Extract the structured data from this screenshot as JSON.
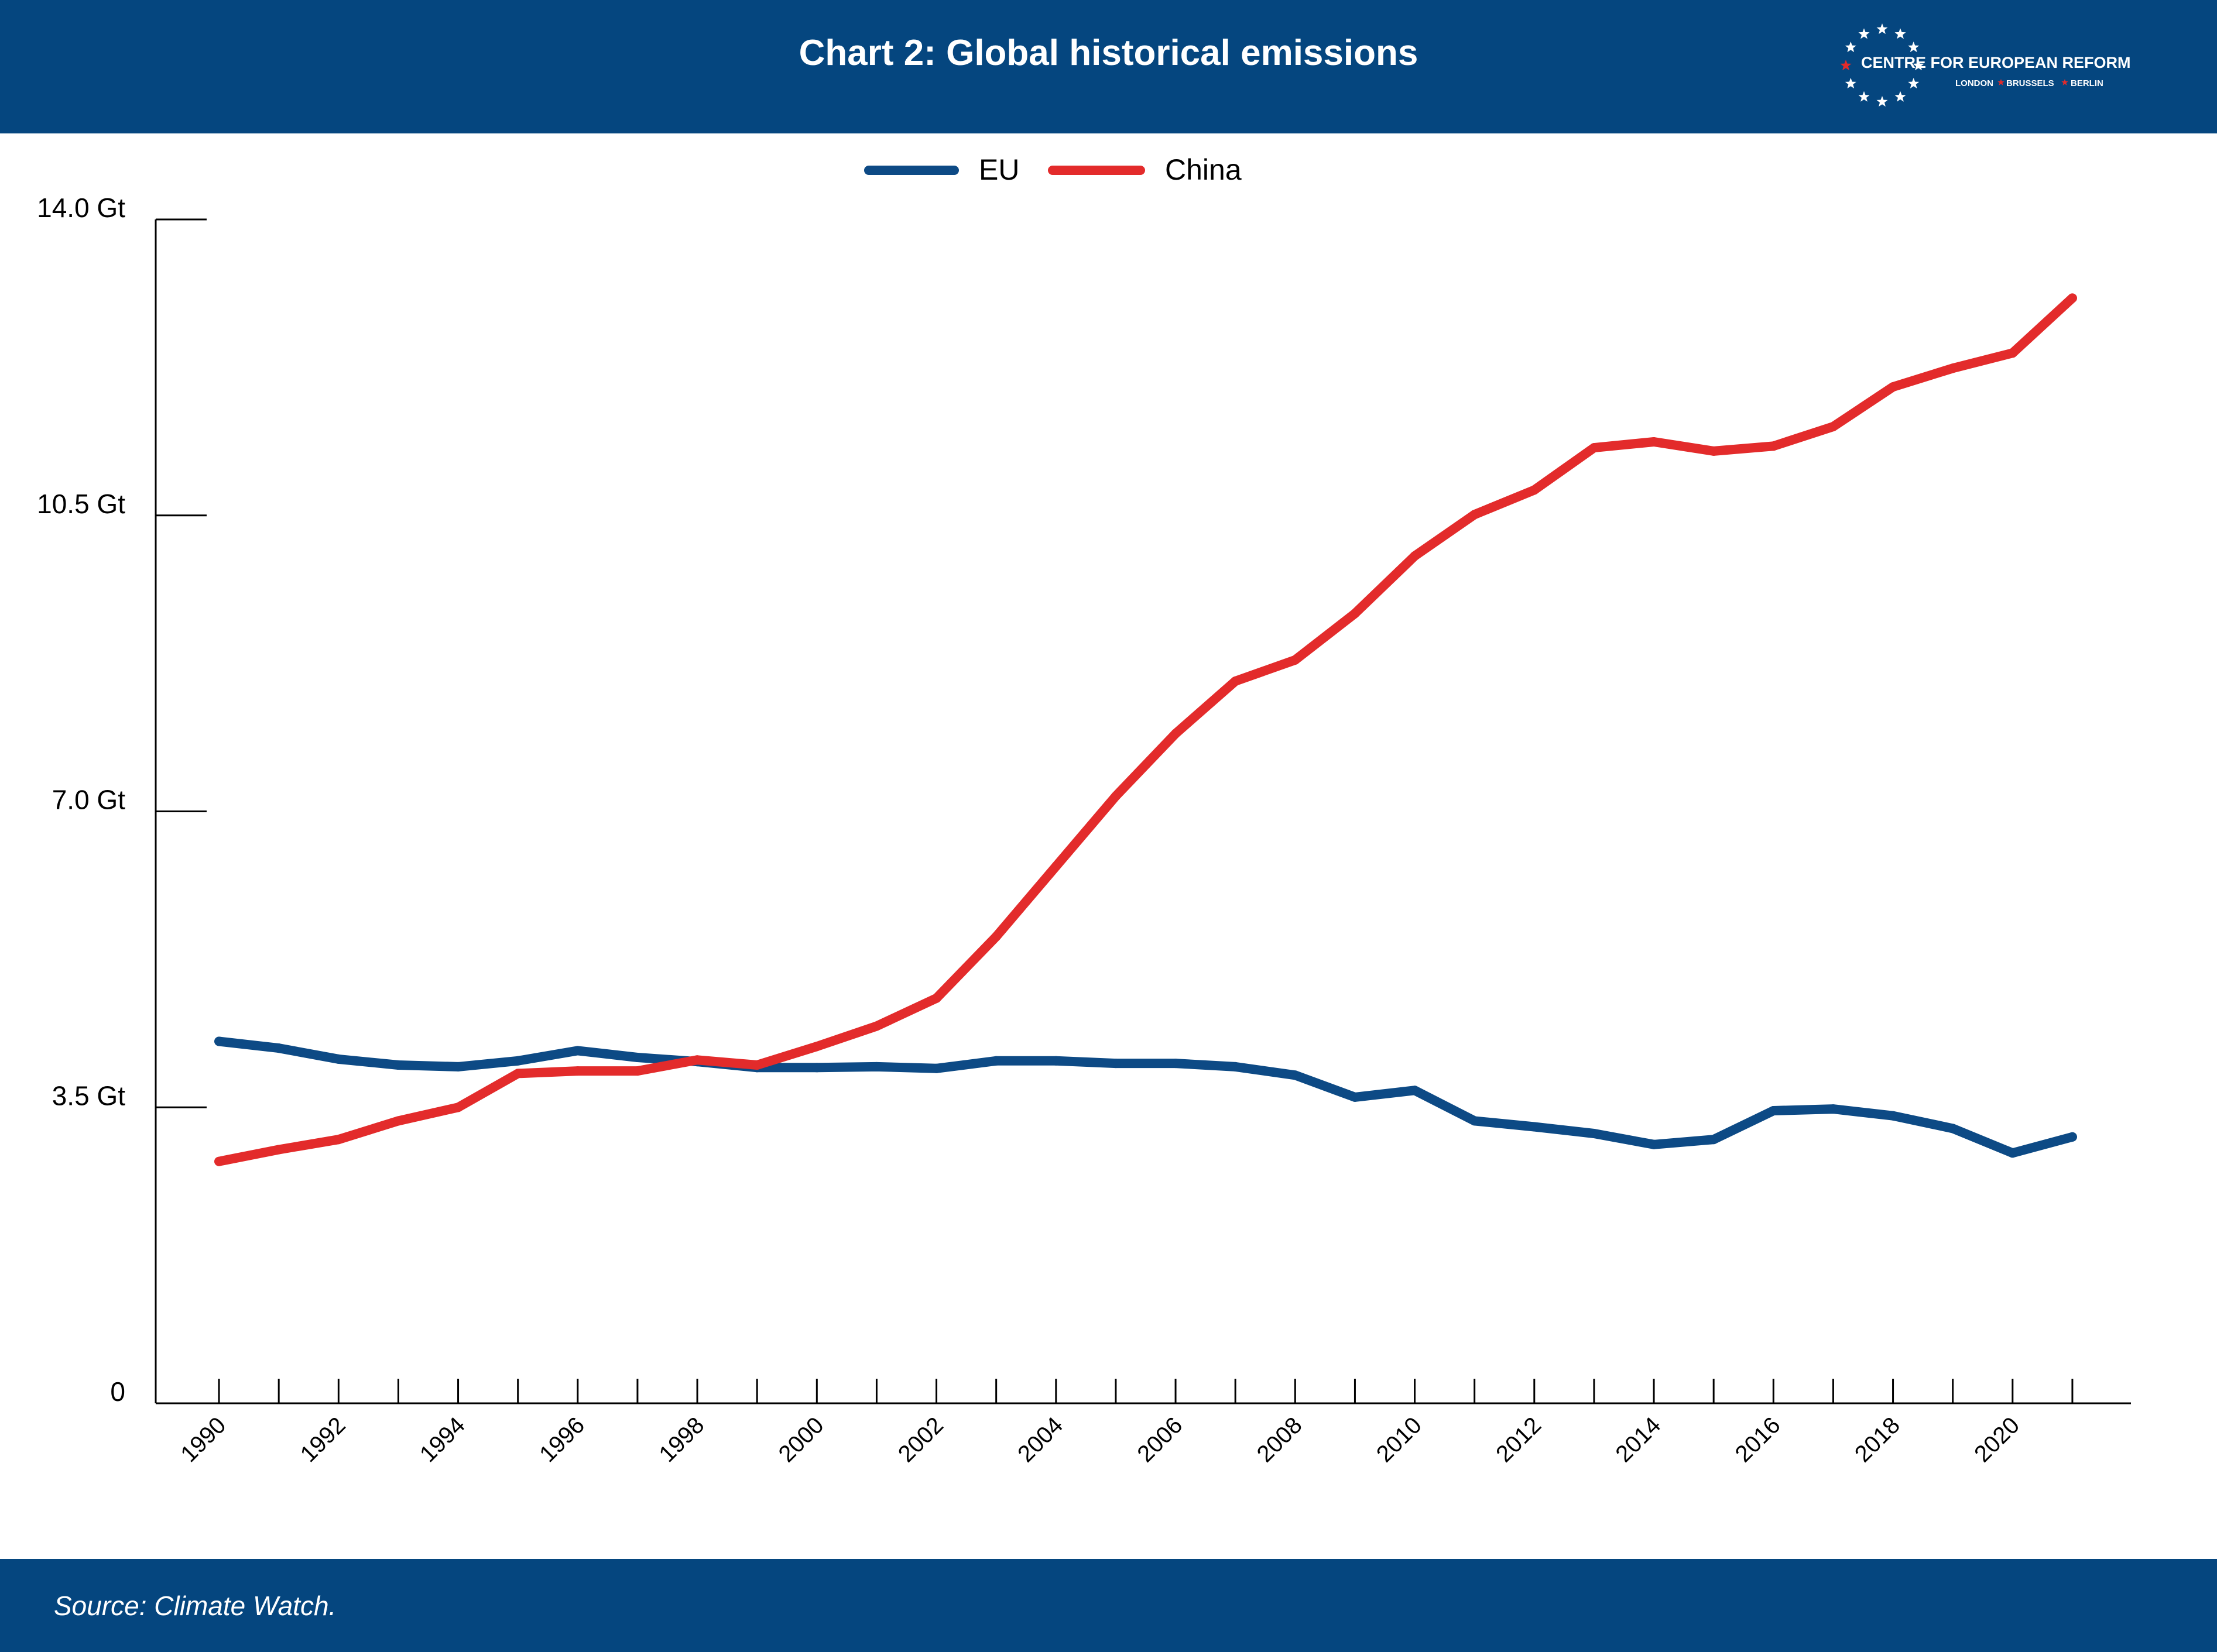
{
  "header": {
    "title": "Chart 2: Global historical emissions",
    "logo": {
      "name": "CENTRE FOR EUROPEAN REFORM",
      "cities": [
        "LONDON",
        "BRUSSELS",
        "BERLIN"
      ]
    }
  },
  "footer": {
    "source": "Source: Climate Watch."
  },
  "colors": {
    "brand_blue": "#05467f",
    "eu_line": "#0d4a85",
    "china_line": "#e32b2b",
    "star_red": "#e32b2b"
  },
  "chart_data": {
    "type": "line",
    "title": "Chart 2: Global historical emissions",
    "xlabel": "",
    "ylabel": "",
    "x": [
      1990,
      1991,
      1992,
      1993,
      1994,
      1995,
      1996,
      1997,
      1998,
      1999,
      2000,
      2001,
      2002,
      2003,
      2004,
      2005,
      2006,
      2007,
      2008,
      2009,
      2010,
      2011,
      2012,
      2013,
      2014,
      2015,
      2016,
      2017,
      2018,
      2019,
      2020,
      2021
    ],
    "x_tick_labels": [
      "1990",
      "1992",
      "1994",
      "1996",
      "1998",
      "2000",
      "2002",
      "2004",
      "2006",
      "2008",
      "2010",
      "2012",
      "2014",
      "2016",
      "2018",
      "2020"
    ],
    "y_tick_values": [
      0,
      3.5,
      7.0,
      10.5,
      14.0
    ],
    "y_tick_labels": [
      "0",
      "3.5 Gt",
      "7.0 Gt",
      "10.5 Gt",
      "14.0 Gt"
    ],
    "ylim": [
      0,
      14.0
    ],
    "xlim": [
      1989.5,
      2021.5
    ],
    "grid": false,
    "legend_position": "top-center",
    "series": [
      {
        "name": "EU",
        "color": "#0d4a85",
        "values": [
          4.28,
          4.2,
          4.07,
          4.0,
          3.98,
          4.05,
          4.17,
          4.09,
          4.04,
          3.97,
          3.97,
          3.98,
          3.96,
          4.05,
          4.05,
          4.02,
          4.02,
          3.98,
          3.88,
          3.62,
          3.7,
          3.34,
          3.27,
          3.19,
          3.06,
          3.12,
          3.46,
          3.48,
          3.4,
          3.25,
          2.96,
          3.15
        ]
      },
      {
        "name": "China",
        "color": "#e32b2b",
        "values": [
          2.86,
          3.0,
          3.12,
          3.34,
          3.5,
          3.9,
          3.93,
          3.93,
          4.06,
          4.0,
          4.22,
          4.46,
          4.79,
          5.52,
          6.35,
          7.18,
          7.92,
          8.54,
          8.79,
          9.34,
          10.02,
          10.51,
          10.8,
          11.3,
          11.37,
          11.26,
          11.32,
          11.55,
          12.02,
          12.24,
          12.42,
          13.07
        ]
      }
    ]
  }
}
